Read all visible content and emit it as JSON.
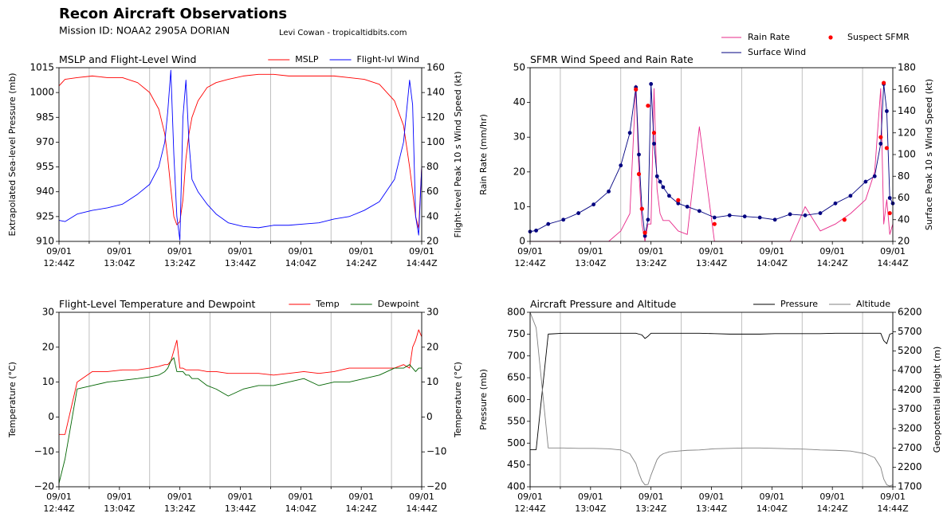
{
  "title": "Recon Aircraft Observations",
  "subtitle": "Mission ID: NOAA2 2905A DORIAN",
  "credit": "Levi Cowan - tropicaltidbits.com",
  "chart_data": [
    {
      "type": "line",
      "title": "MSLP and Flight-Level Wind",
      "ylabel": "Extrapolated Sea-level Pressure (mb)",
      "y2label": "Flight-level Peak 10 s Wind Speed (kt)",
      "legend": "top-right",
      "grid": "x-minor",
      "xlim": [
        "12:44",
        "14:44"
      ],
      "xticks": [
        {
          "value": "12:44",
          "label": [
            "09/01",
            "12:44Z"
          ]
        },
        {
          "value": "12:54",
          "label": null
        },
        {
          "value": "13:04",
          "label": [
            "09/01",
            "13:04Z"
          ]
        },
        {
          "value": "13:14",
          "label": null
        },
        {
          "value": "13:24",
          "label": [
            "09/01",
            "13:24Z"
          ]
        },
        {
          "value": "13:34",
          "label": null
        },
        {
          "value": "13:44",
          "label": [
            "09/01",
            "13:44Z"
          ]
        },
        {
          "value": "13:54",
          "label": null
        },
        {
          "value": "14:04",
          "label": [
            "09/01",
            "14:04Z"
          ]
        },
        {
          "value": "14:14",
          "label": null
        },
        {
          "value": "14:24",
          "label": [
            "09/01",
            "14:24Z"
          ]
        },
        {
          "value": "14:34",
          "label": null
        },
        {
          "value": "14:44",
          "label": [
            "09/01",
            "14:44Z"
          ]
        }
      ],
      "ylim": [
        910,
        1015
      ],
      "yticks": [
        910,
        925,
        940,
        955,
        970,
        985,
        1000,
        1015
      ],
      "y2lim": [
        20,
        160
      ],
      "y2ticks": [
        20,
        40,
        60,
        80,
        100,
        120,
        140,
        160
      ],
      "x": [
        "12:44",
        "12:46",
        "12:50",
        "12:55",
        "13:00",
        "13:05",
        "13:10",
        "13:14",
        "13:17",
        "13:19",
        "13:20",
        "13:21",
        "13:22",
        "13:23",
        "13:24",
        "13:25",
        "13:26",
        "13:27",
        "13:28",
        "13:30",
        "13:33",
        "13:36",
        "13:40",
        "13:45",
        "13:50",
        "13:55",
        "14:00",
        "14:05",
        "14:10",
        "14:15",
        "14:20",
        "14:25",
        "14:30",
        "14:35",
        "14:38",
        "14:40",
        "14:41",
        "14:42",
        "14:43",
        "14:44"
      ],
      "series": [
        {
          "name": "MSLP",
          "color": "#ff0000",
          "axis": "y",
          "values": [
            1004,
            1008,
            1009,
            1010,
            1009,
            1009,
            1006,
            1000,
            990,
            975,
            960,
            942,
            925,
            920,
            922,
            935,
            960,
            975,
            985,
            995,
            1003,
            1006,
            1008,
            1010,
            1011,
            1011,
            1010,
            1010,
            1010,
            1010,
            1009,
            1008,
            1005,
            995,
            980,
            955,
            940,
            925,
            918,
            955
          ]
        },
        {
          "name": "Flight-lvl Wind",
          "color": "#0000ff",
          "axis": "y2",
          "values": [
            37,
            36,
            42,
            45,
            47,
            50,
            58,
            66,
            80,
            100,
            125,
            158,
            90,
            40,
            21,
            120,
            150,
            100,
            70,
            60,
            50,
            42,
            35,
            32,
            31,
            33,
            33,
            34,
            35,
            38,
            40,
            45,
            52,
            70,
            100,
            150,
            130,
            40,
            25,
            80
          ]
        }
      ]
    },
    {
      "type": "line",
      "title": "SFMR Wind Speed and Rain Rate",
      "ylabel": "Rain Rate (mm/hr)",
      "y2label": "Surface Peak 10 s Wind Speed (kt)",
      "legend": "outside-top",
      "grid": "x-minor",
      "xlim": [
        "12:44",
        "14:44"
      ],
      "xticks": [
        {
          "value": "12:44",
          "label": [
            "09/01",
            "12:44Z"
          ]
        },
        {
          "value": "12:54",
          "label": null
        },
        {
          "value": "13:04",
          "label": [
            "09/01",
            "13:04Z"
          ]
        },
        {
          "value": "13:14",
          "label": null
        },
        {
          "value": "13:24",
          "label": [
            "09/01",
            "13:24Z"
          ]
        },
        {
          "value": "13:34",
          "label": null
        },
        {
          "value": "13:44",
          "label": [
            "09/01",
            "13:44Z"
          ]
        },
        {
          "value": "13:54",
          "label": null
        },
        {
          "value": "14:04",
          "label": [
            "09/01",
            "14:04Z"
          ]
        },
        {
          "value": "14:14",
          "label": null
        },
        {
          "value": "14:24",
          "label": [
            "09/01",
            "14:24Z"
          ]
        },
        {
          "value": "14:34",
          "label": null
        },
        {
          "value": "14:44",
          "label": [
            "09/01",
            "14:44Z"
          ]
        }
      ],
      "ylim": [
        0,
        50
      ],
      "yticks": [
        0,
        10,
        20,
        30,
        40,
        50
      ],
      "y2lim": [
        20,
        180
      ],
      "y2ticks": [
        20,
        40,
        60,
        80,
        100,
        120,
        140,
        160,
        180
      ],
      "x": [
        "12:44",
        "12:46",
        "12:50",
        "12:55",
        "13:00",
        "13:05",
        "13:10",
        "13:14",
        "13:17",
        "13:19",
        "13:20",
        "13:21",
        "13:22",
        "13:23",
        "13:24",
        "13:25",
        "13:26",
        "13:27",
        "13:28",
        "13:30",
        "13:33",
        "13:36",
        "13:40",
        "13:45",
        "13:50",
        "13:55",
        "14:00",
        "14:05",
        "14:10",
        "14:15",
        "14:20",
        "14:25",
        "14:30",
        "14:35",
        "14:38",
        "14:40",
        "14:41",
        "14:42",
        "14:43",
        "14:44"
      ],
      "series": [
        {
          "name": "Rain Rate",
          "color": "#e7298a",
          "axis": "y",
          "values": [
            0,
            0,
            0,
            0,
            0,
            0,
            0,
            3,
            8,
            45,
            20,
            5,
            0,
            5,
            5,
            44,
            15,
            8,
            6,
            6,
            3,
            2,
            33,
            0,
            0,
            0,
            0,
            0,
            0,
            10,
            3,
            5,
            8,
            12,
            20,
            44,
            5,
            12,
            2,
            5
          ]
        },
        {
          "name": "Surface Wind",
          "color": "#000080",
          "axis": "y2",
          "marker": true,
          "values": [
            29,
            30,
            36,
            40,
            46,
            54,
            66,
            90,
            120,
            162,
            100,
            50,
            25,
            40,
            165,
            110,
            80,
            75,
            70,
            62,
            55,
            52,
            48,
            42,
            44,
            43,
            42,
            40,
            45,
            44,
            46,
            55,
            62,
            75,
            80,
            110,
            165,
            140,
            60,
            55
          ]
        },
        {
          "name": "Suspect SFMR",
          "color": "#ff0000",
          "axis": "y2",
          "type": "scatter",
          "x": [
            "13:19",
            "13:20",
            "13:21",
            "13:22",
            "13:23",
            "13:25",
            "13:33",
            "13:45",
            "14:28",
            "14:40",
            "14:41",
            "14:42",
            "14:43"
          ],
          "values": [
            160,
            82,
            50,
            28,
            145,
            120,
            58,
            36,
            40,
            116,
            166,
            106,
            46
          ]
        }
      ]
    },
    {
      "type": "line",
      "title": "Flight-Level Temperature and Dewpoint",
      "ylabel": "Temperature (°C)",
      "y2label": "Temperature (°C)",
      "legend": "top-right",
      "grid": "x-minor",
      "xlim": [
        "12:44",
        "14:44"
      ],
      "xticks": [
        {
          "value": "12:44",
          "label": [
            "09/01",
            "12:44Z"
          ]
        },
        {
          "value": "12:54",
          "label": null
        },
        {
          "value": "13:04",
          "label": [
            "09/01",
            "13:04Z"
          ]
        },
        {
          "value": "13:14",
          "label": null
        },
        {
          "value": "13:24",
          "label": [
            "09/01",
            "13:24Z"
          ]
        },
        {
          "value": "13:34",
          "label": null
        },
        {
          "value": "13:44",
          "label": [
            "09/01",
            "13:44Z"
          ]
        },
        {
          "value": "13:54",
          "label": null
        },
        {
          "value": "14:04",
          "label": [
            "09/01",
            "14:04Z"
          ]
        },
        {
          "value": "14:14",
          "label": null
        },
        {
          "value": "14:24",
          "label": [
            "09/01",
            "14:24Z"
          ]
        },
        {
          "value": "14:34",
          "label": null
        },
        {
          "value": "14:44",
          "label": [
            "09/01",
            "14:44Z"
          ]
        }
      ],
      "ylim": [
        -20,
        30
      ],
      "yticks": [
        {
          "value": -20,
          "label": "−20"
        },
        {
          "value": -10,
          "label": "−10"
        },
        0,
        10,
        20,
        30
      ],
      "y2lim": [
        -20,
        30
      ],
      "y2ticks": [
        {
          "value": -20,
          "label": "−20"
        },
        {
          "value": -10,
          "label": "−10"
        },
        0,
        10,
        20,
        30
      ],
      "x": [
        "12:44",
        "12:46",
        "12:50",
        "12:55",
        "13:00",
        "13:05",
        "13:10",
        "13:14",
        "13:17",
        "13:19",
        "13:20",
        "13:21",
        "13:22",
        "13:23",
        "13:24",
        "13:25",
        "13:26",
        "13:27",
        "13:28",
        "13:30",
        "13:33",
        "13:36",
        "13:40",
        "13:45",
        "13:50",
        "13:55",
        "14:00",
        "14:05",
        "14:10",
        "14:15",
        "14:20",
        "14:25",
        "14:30",
        "14:35",
        "14:38",
        "14:40",
        "14:41",
        "14:42",
        "14:43",
        "14:44"
      ],
      "series": [
        {
          "name": "Temp",
          "color": "#ff0000",
          "axis": "y",
          "values": [
            -5,
            -5,
            10,
            13,
            13,
            13.5,
            13.5,
            14,
            14.5,
            15,
            15,
            16,
            19,
            22,
            14,
            14,
            13.5,
            13.5,
            13.5,
            13.5,
            13,
            13,
            12.5,
            12.5,
            12.5,
            12,
            12.5,
            13,
            12.5,
            13,
            14,
            14,
            14,
            14,
            15,
            14,
            20,
            22,
            25,
            23
          ]
        },
        {
          "name": "Dewpoint",
          "color": "#006400",
          "axis": "y",
          "values": [
            -19,
            -12,
            8,
            9,
            10,
            10.5,
            11,
            11.5,
            12,
            13,
            14,
            16,
            17,
            13,
            13,
            13,
            12,
            12,
            11,
            11,
            9,
            8,
            6,
            8,
            9,
            9,
            10,
            11,
            9,
            10,
            10,
            11,
            12,
            14,
            14,
            15,
            14,
            13,
            14,
            14
          ]
        }
      ]
    },
    {
      "type": "line",
      "title": "Aircraft Pressure and Altitude",
      "ylabel": "Pressure (mb)",
      "y2label": "Geopotential Height (m)",
      "legend": "top-right",
      "grid": "x-minor",
      "xlim": [
        "12:44",
        "14:44"
      ],
      "xticks": [
        {
          "value": "12:44",
          "label": [
            "09/01",
            "12:44Z"
          ]
        },
        {
          "value": "12:54",
          "label": null
        },
        {
          "value": "13:04",
          "label": [
            "09/01",
            "13:04Z"
          ]
        },
        {
          "value": "13:14",
          "label": null
        },
        {
          "value": "13:24",
          "label": [
            "09/01",
            "13:24Z"
          ]
        },
        {
          "value": "13:34",
          "label": null
        },
        {
          "value": "13:44",
          "label": [
            "09/01",
            "13:44Z"
          ]
        },
        {
          "value": "13:54",
          "label": null
        },
        {
          "value": "14:04",
          "label": [
            "09/01",
            "14:04Z"
          ]
        },
        {
          "value": "14:14",
          "label": null
        },
        {
          "value": "14:24",
          "label": [
            "09/01",
            "14:24Z"
          ]
        },
        {
          "value": "14:34",
          "label": null
        },
        {
          "value": "14:44",
          "label": [
            "09/01",
            "14:44Z"
          ]
        }
      ],
      "ylim": [
        400,
        800
      ],
      "yticks": [
        400,
        450,
        500,
        550,
        600,
        650,
        700,
        750,
        800
      ],
      "y2lim": [
        1700,
        6200
      ],
      "y2ticks": [
        1700,
        2200,
        2700,
        3200,
        3700,
        4200,
        4700,
        5200,
        5700,
        6200
      ],
      "x": [
        "12:44",
        "12:46",
        "12:50",
        "12:55",
        "13:00",
        "13:05",
        "13:10",
        "13:14",
        "13:17",
        "13:19",
        "13:20",
        "13:21",
        "13:22",
        "13:23",
        "13:24",
        "13:25",
        "13:26",
        "13:27",
        "13:28",
        "13:30",
        "13:33",
        "13:36",
        "13:40",
        "13:45",
        "13:50",
        "13:55",
        "14:00",
        "14:05",
        "14:10",
        "14:15",
        "14:20",
        "14:25",
        "14:30",
        "14:35",
        "14:38",
        "14:40",
        "14:41",
        "14:42",
        "14:43",
        "14:44"
      ],
      "series": [
        {
          "name": "Pressure",
          "color": "#000000",
          "axis": "y",
          "values": [
            485,
            485,
            750,
            752,
            752,
            752,
            752,
            752,
            752,
            752,
            750,
            748,
            740,
            745,
            752,
            752,
            752,
            752,
            752,
            752,
            752,
            752,
            752,
            751,
            750,
            750,
            750,
            751,
            751,
            751,
            751,
            752,
            752,
            752,
            752,
            752,
            735,
            728,
            750,
            752
          ]
        },
        {
          "name": "Altitude",
          "color": "#808080",
          "axis": "y2",
          "values": [
            6200,
            5800,
            2700,
            2700,
            2690,
            2690,
            2680,
            2650,
            2550,
            2300,
            2050,
            1850,
            1750,
            1760,
            2000,
            2200,
            2400,
            2500,
            2550,
            2600,
            2620,
            2640,
            2650,
            2680,
            2690,
            2700,
            2700,
            2690,
            2680,
            2670,
            2650,
            2640,
            2620,
            2550,
            2450,
            2200,
            1900,
            1750,
            1720,
            1750
          ]
        }
      ]
    }
  ]
}
